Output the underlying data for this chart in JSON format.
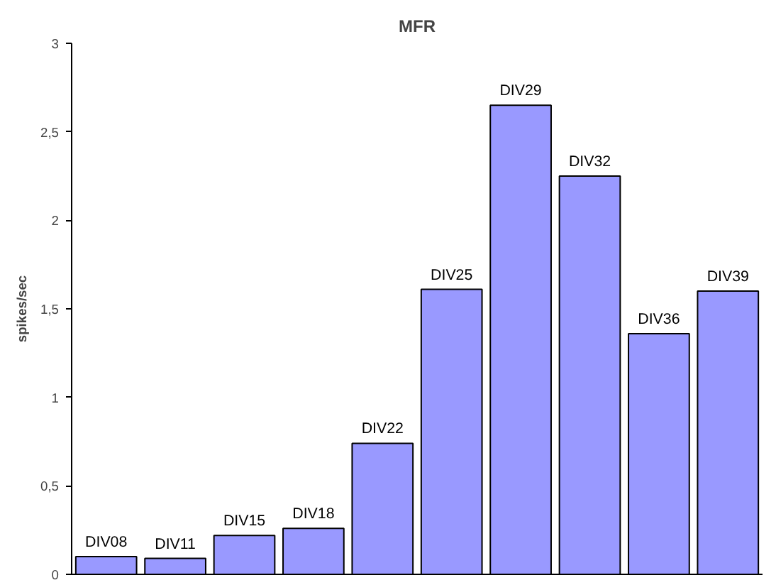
{
  "chart_data": {
    "type": "bar",
    "title": "MFR",
    "ylabel": "spikes/sec",
    "categories": [
      "DIV08",
      "DIV11",
      "DIV15",
      "DIV18",
      "DIV22",
      "DIV25",
      "DIV29",
      "DIV32",
      "DIV36",
      "DIV39"
    ],
    "values": [
      0.1,
      0.09,
      0.22,
      0.26,
      0.74,
      1.61,
      2.65,
      2.25,
      1.36,
      1.6
    ],
    "color": "#9999ff",
    "ylim": [
      0,
      3
    ],
    "yticks": [
      0,
      {
        "value": 0.5,
        "label": "0,5"
      },
      1,
      {
        "value": 1.5,
        "label": "1,5"
      },
      2,
      {
        "value": 2.5,
        "label": "2,5"
      },
      3
    ],
    "grid": false
  }
}
